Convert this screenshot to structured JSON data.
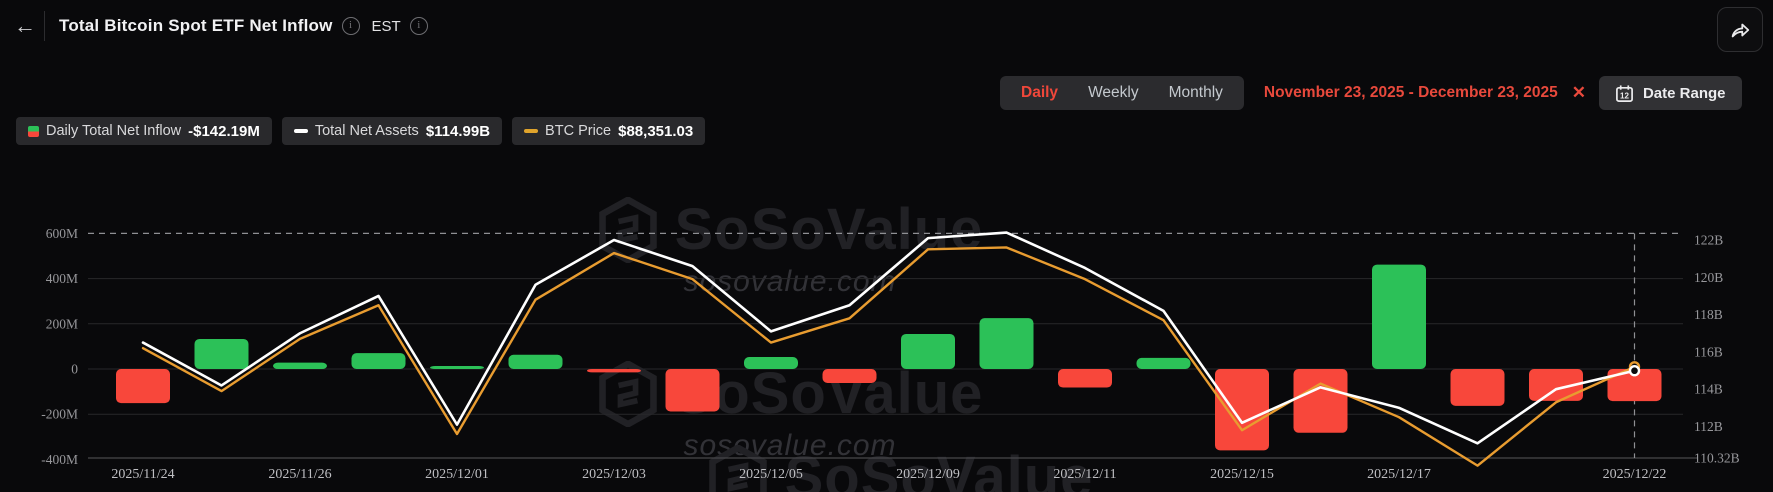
{
  "header": {
    "title": "Total Bitcoin Spot ETF Net Inflow",
    "est_label": "EST",
    "icons": [
      "back-arrow-icon",
      "info-icon",
      "info-icon",
      "share-icon"
    ]
  },
  "controls": {
    "tabs": [
      "Daily",
      "Weekly",
      "Monthly"
    ],
    "active_tab": "Daily",
    "date_range_text": "November 23, 2025 - December 23, 2025",
    "close_icon": "✕",
    "date_range_button": "Date Range",
    "calendar_day": "12",
    "accent_color": "#f0473a"
  },
  "legend": {
    "items": [
      {
        "icon": "bar-split-icon",
        "label": "Daily Total Net Inflow",
        "value": "-$142.19M"
      },
      {
        "icon": "white-dash-icon",
        "label": "Total Net Assets",
        "value": "$114.99B"
      },
      {
        "icon": "orange-dash-icon",
        "label": "BTC Price",
        "value": "$88,351.03"
      }
    ]
  },
  "watermark": {
    "brand": "SoSoValue",
    "url": "sosovalue.com"
  },
  "chart_data": {
    "type": "bar",
    "subtype": "combo-bar-line",
    "categories": [
      "2025/11/24",
      "2025/11/25",
      "2025/11/26",
      "2025/11/28",
      "2025/12/01",
      "2025/12/02",
      "2025/12/03",
      "2025/12/04",
      "2025/12/05",
      "2025/12/08",
      "2025/12/09",
      "2025/12/10",
      "2025/12/11",
      "2025/12/12",
      "2025/12/15",
      "2025/12/16",
      "2025/12/17",
      "2025/12/18",
      "2025/12/19",
      "2025/12/22"
    ],
    "series": [
      {
        "name": "Daily Total Net Inflow",
        "type": "bar",
        "unit": "USD millions",
        "values": [
          -151,
          133,
          28,
          70,
          13,
          63,
          -15,
          -188,
          53,
          -62,
          155,
          225,
          -82,
          49,
          -360,
          -282,
          462,
          -163,
          -141,
          -142.19
        ],
        "positive_color": "#2cc158",
        "negative_color": "#f8473b"
      },
      {
        "name": "Total Net Assets",
        "type": "line",
        "unit": "USD billions",
        "color": "#ffffff",
        "values": [
          116.5,
          114.2,
          117.0,
          119.0,
          112.1,
          119.6,
          122.0,
          120.6,
          117.1,
          118.5,
          122.1,
          122.4,
          120.5,
          118.2,
          112.2,
          114.1,
          113.0,
          111.1,
          114.0,
          114.99
        ]
      },
      {
        "name": "BTC Price",
        "type": "line",
        "unit": "USD",
        "color": "#e89c30",
        "last_value_label": "$88,351.03",
        "plot_values_right_axis_equivalent_B": [
          116.2,
          113.9,
          116.7,
          118.5,
          111.6,
          118.8,
          121.3,
          119.9,
          116.5,
          117.8,
          121.5,
          121.6,
          119.9,
          117.7,
          111.8,
          114.3,
          112.5,
          109.9,
          113.3,
          115.2
        ]
      }
    ],
    "left_axis": {
      "tick_labels": [
        "600M",
        "400M",
        "200M",
        "0",
        "-200M",
        "-400M"
      ],
      "tick_values": [
        600,
        400,
        200,
        0,
        -200,
        -400
      ],
      "dashed_tick": 600
    },
    "right_axis": {
      "tick_labels": [
        "122B",
        "120B",
        "118B",
        "116B",
        "114B",
        "112B",
        "110.32B"
      ],
      "tick_values": [
        122,
        120,
        118,
        116,
        114,
        112,
        110.32
      ]
    },
    "x_ticks": [
      {
        "index": 0,
        "label": "2025/11/24"
      },
      {
        "index": 2,
        "label": "2025/11/26"
      },
      {
        "index": 4,
        "label": "2025/12/01"
      },
      {
        "index": 6,
        "label": "2025/12/03"
      },
      {
        "index": 8,
        "label": "2025/12/05"
      },
      {
        "index": 10,
        "label": "2025/12/09"
      },
      {
        "index": 12,
        "label": "2025/12/11"
      },
      {
        "index": 14,
        "label": "2025/12/15"
      },
      {
        "index": 16,
        "label": "2025/12/17"
      },
      {
        "index": 19,
        "label": "2025/12/22"
      }
    ],
    "crosshair": {
      "at_index": 19,
      "style": "dashed-vertical"
    },
    "grid": true,
    "legend_position": "top-left"
  }
}
